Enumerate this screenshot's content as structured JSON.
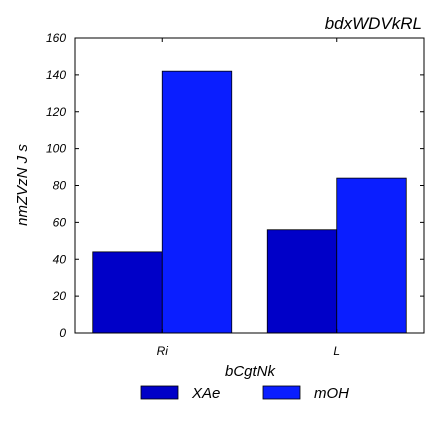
{
  "chart_data": {
    "type": "bar",
    "title": "bdxWDVkRL",
    "xlabel": "bCgtNk",
    "ylabel": "nmZVzN J s",
    "categories": [
      "Ri",
      "L"
    ],
    "series": [
      {
        "name": "XAe",
        "values": [
          44,
          56
        ],
        "color": "#0000c8"
      },
      {
        "name": "mOH",
        "values": [
          142,
          84
        ],
        "color": "#0a1eff"
      }
    ],
    "ylim": [
      0,
      160
    ],
    "yticks": [
      0,
      20,
      40,
      60,
      80,
      100,
      120,
      140,
      160
    ],
    "grid": false,
    "legend_position": "bottom"
  }
}
